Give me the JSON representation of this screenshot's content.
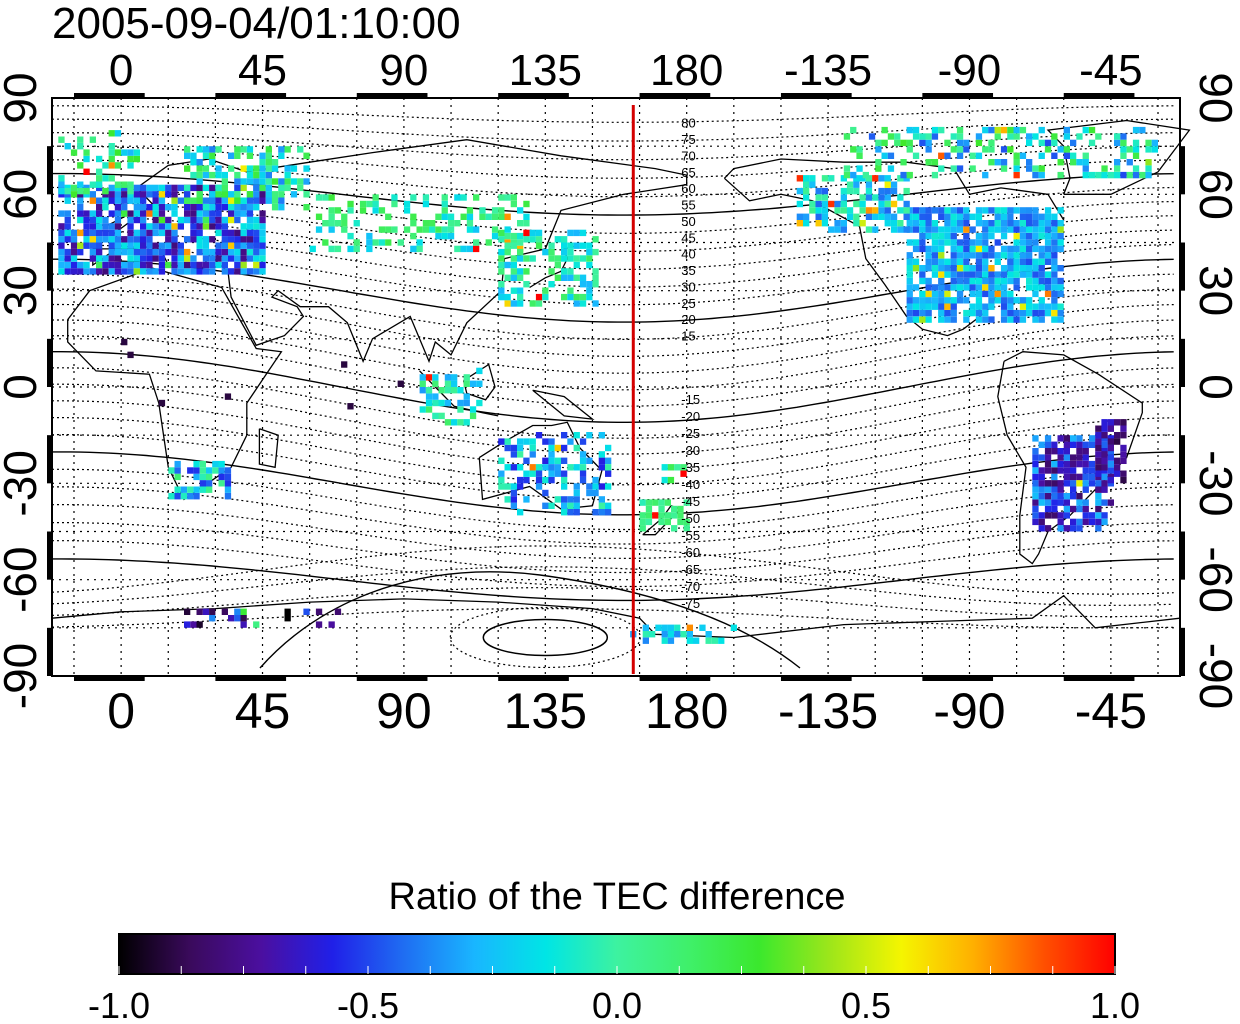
{
  "timestamp": "2005-09-04/01:10:00",
  "top_lon_ticks": [
    "0",
    "45",
    "90",
    "135",
    "180",
    "-135",
    "-90",
    "-45"
  ],
  "bottom_lon_ticks": [
    "0",
    "45",
    "90",
    "135",
    "180",
    "-135",
    "-90",
    "-45"
  ],
  "left_lat_ticks": [
    "90",
    "60",
    "30",
    "0",
    "-30",
    "-60",
    "-90"
  ],
  "right_lat_ticks": [
    "90",
    "60",
    "30",
    "0",
    "-30",
    "-60",
    "-90"
  ],
  "contour_labels_north": [
    "80",
    "75",
    "70",
    "65",
    "60",
    "55",
    "50",
    "45",
    "40",
    "35",
    "30",
    "25",
    "20",
    "15"
  ],
  "contour_labels_south": [
    "-15",
    "-20",
    "-25",
    "-30",
    "-35",
    "-40",
    "-45",
    "-50",
    "-55",
    "-60",
    "-65",
    "-70",
    "-75"
  ],
  "colorbar": {
    "title": "Ratio of the TEC difference",
    "tick_labels": [
      "-1.0",
      "-0.5",
      "0.0",
      "0.5",
      "1.0"
    ],
    "min": -1.0,
    "max": 1.0
  },
  "colors": {
    "marker_line": "#d40000",
    "colormap": [
      "#000000",
      "#3a0a5c",
      "#4b0fa0",
      "#2020e8",
      "#1f6df2",
      "#19b6ff",
      "#00e5e5",
      "#3df2a0",
      "#3ff06a",
      "#3be82d",
      "#9ee61a",
      "#f5f500",
      "#ffb000",
      "#ff5000",
      "#ff0000"
    ]
  },
  "marker_longitude": 163,
  "map_extent": {
    "lon_min": -22,
    "lon_max": 337,
    "lat_min": -90,
    "lat_max": 90
  }
}
